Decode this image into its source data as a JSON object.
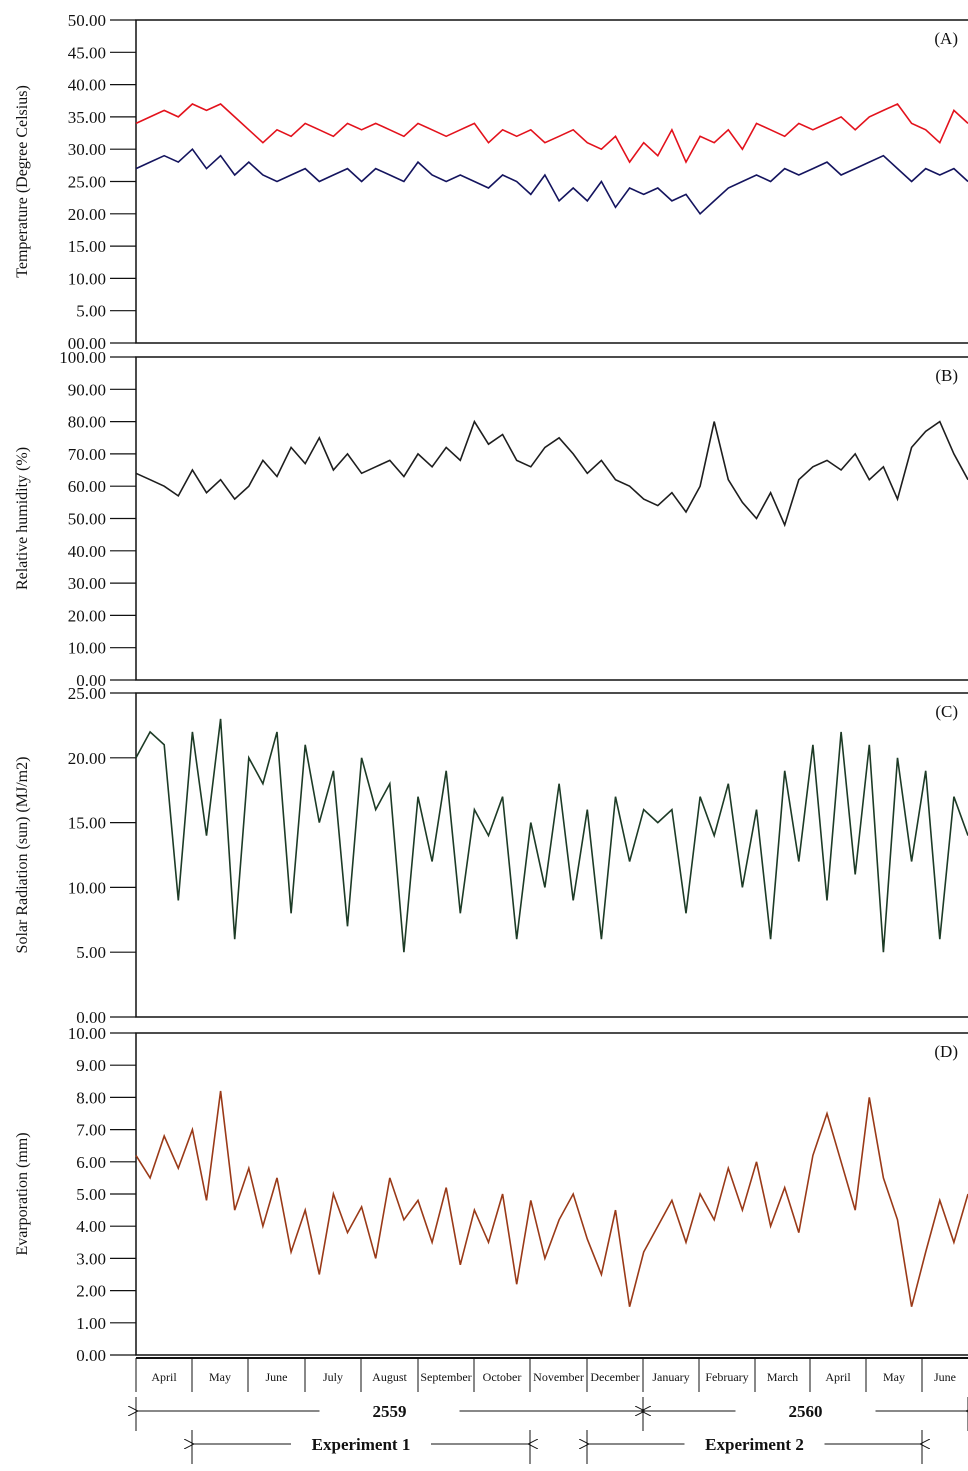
{
  "chart_data": [
    {
      "type": "line",
      "panel_label": "(A)",
      "y_label": "Temperature (Degree Celsius)",
      "ylim": [
        0,
        50
      ],
      "yticks": [
        {
          "value": 0,
          "label": "00.00"
        },
        {
          "value": 5,
          "label": "5.00"
        },
        {
          "value": 10,
          "label": "10.00"
        },
        {
          "value": 15,
          "label": "15.00"
        },
        {
          "value": 20,
          "label": "20.00"
        },
        {
          "value": 25,
          "label": "25.00"
        },
        {
          "value": 30,
          "label": "30.00"
        },
        {
          "value": 35,
          "label": "35.00"
        },
        {
          "value": 40,
          "label": "40.00"
        },
        {
          "value": 45,
          "label": "45.00"
        },
        {
          "value": 50,
          "label": "50.00"
        }
      ],
      "series": [
        {
          "color": "#e3121c",
          "values": [
            34,
            35,
            36,
            35,
            37,
            36,
            37,
            35,
            33,
            31,
            33,
            32,
            34,
            33,
            32,
            34,
            33,
            34,
            33,
            32,
            34,
            33,
            32,
            33,
            34,
            31,
            33,
            32,
            33,
            31,
            32,
            33,
            31,
            30,
            32,
            28,
            31,
            29,
            33,
            28,
            32,
            31,
            33,
            30,
            34,
            33,
            32,
            34,
            33,
            34,
            35,
            33,
            35,
            36,
            37,
            34,
            33,
            31,
            36,
            34
          ]
        },
        {
          "color": "#14145e",
          "values": [
            27,
            28,
            29,
            28,
            30,
            27,
            29,
            26,
            28,
            26,
            25,
            26,
            27,
            25,
            26,
            27,
            25,
            27,
            26,
            25,
            28,
            26,
            25,
            26,
            25,
            24,
            26,
            25,
            23,
            26,
            22,
            24,
            22,
            25,
            21,
            24,
            23,
            24,
            22,
            23,
            20,
            22,
            24,
            25,
            26,
            25,
            27,
            26,
            27,
            28,
            26,
            27,
            28,
            29,
            27,
            25,
            27,
            26,
            27,
            25
          ]
        }
      ]
    },
    {
      "type": "line",
      "panel_label": "(B)",
      "y_label": "Relative humidity (%)",
      "ylim": [
        0,
        100
      ],
      "yticks": [
        {
          "value": 0,
          "label": "0.00"
        },
        {
          "value": 10,
          "label": "10.00"
        },
        {
          "value": 20,
          "label": "20.00"
        },
        {
          "value": 30,
          "label": "30.00"
        },
        {
          "value": 40,
          "label": "40.00"
        },
        {
          "value": 50,
          "label": "50.00"
        },
        {
          "value": 60,
          "label": "60.00"
        },
        {
          "value": 70,
          "label": "70.00"
        },
        {
          "value": 80,
          "label": "80.00"
        },
        {
          "value": 90,
          "label": "90.00"
        },
        {
          "value": 100,
          "label": "100.00"
        }
      ],
      "series": [
        {
          "color": "#1e1e1e",
          "values": [
            64,
            62,
            60,
            57,
            65,
            58,
            62,
            56,
            60,
            68,
            63,
            72,
            67,
            75,
            65,
            70,
            64,
            66,
            68,
            63,
            70,
            66,
            72,
            68,
            80,
            73,
            76,
            68,
            66,
            72,
            75,
            70,
            64,
            68,
            62,
            60,
            56,
            54,
            58,
            52,
            60,
            80,
            62,
            55,
            50,
            58,
            48,
            62,
            66,
            68,
            65,
            70,
            62,
            66,
            56,
            72,
            77,
            80,
            70,
            62
          ]
        }
      ]
    },
    {
      "type": "line",
      "panel_label": "(C)",
      "y_label": "Solar Radiation (sun) (MJ/m2)",
      "ylim": [
        0,
        25
      ],
      "yticks": [
        {
          "value": 0,
          "label": "0.00"
        },
        {
          "value": 5,
          "label": "5.00"
        },
        {
          "value": 10,
          "label": "10.00"
        },
        {
          "value": 15,
          "label": "15.00"
        },
        {
          "value": 20,
          "label": "20.00"
        },
        {
          "value": 25,
          "label": "25.00"
        }
      ],
      "series": [
        {
          "color": "#1d3b26",
          "values": [
            20,
            22,
            21,
            9,
            22,
            14,
            23,
            6,
            20,
            18,
            22,
            8,
            21,
            15,
            19,
            7,
            20,
            16,
            18,
            5,
            17,
            12,
            19,
            8,
            16,
            14,
            17,
            6,
            15,
            10,
            18,
            9,
            16,
            6,
            17,
            12,
            16,
            15,
            16,
            8,
            17,
            14,
            18,
            10,
            16,
            6,
            19,
            12,
            21,
            9,
            22,
            11,
            21,
            5,
            20,
            12,
            19,
            6,
            17,
            14
          ]
        }
      ]
    },
    {
      "type": "line",
      "panel_label": "(D)",
      "y_label": "Evarporation (mm)",
      "ylim": [
        0,
        10
      ],
      "yticks": [
        {
          "value": 0,
          "label": "0.00"
        },
        {
          "value": 1,
          "label": "1.00"
        },
        {
          "value": 2,
          "label": "2.00"
        },
        {
          "value": 3,
          "label": "3.00"
        },
        {
          "value": 4,
          "label": "4.00"
        },
        {
          "value": 5,
          "label": "5.00"
        },
        {
          "value": 6,
          "label": "6.00"
        },
        {
          "value": 7,
          "label": "7.00"
        },
        {
          "value": 8,
          "label": "8.00"
        },
        {
          "value": 9,
          "label": "9.00"
        },
        {
          "value": 10,
          "label": "10.00"
        }
      ],
      "series": [
        {
          "color": "#9a3a18",
          "values": [
            6.2,
            5.5,
            6.8,
            5.8,
            7.0,
            4.8,
            8.2,
            4.5,
            5.8,
            4.0,
            5.5,
            3.2,
            4.5,
            2.5,
            5.0,
            3.8,
            4.6,
            3.0,
            5.5,
            4.2,
            4.8,
            3.5,
            5.2,
            2.8,
            4.5,
            3.5,
            5.0,
            2.2,
            4.8,
            3.0,
            4.2,
            5.0,
            3.6,
            2.5,
            4.5,
            1.5,
            3.2,
            4.0,
            4.8,
            3.5,
            5.0,
            4.2,
            5.8,
            4.5,
            6.0,
            4.0,
            5.2,
            3.8,
            6.2,
            7.5,
            6.0,
            4.5,
            8.0,
            5.5,
            4.2,
            1.5,
            3.2,
            4.8,
            3.5,
            5.0
          ]
        }
      ]
    }
  ],
  "x_axis": {
    "categories": [
      "April",
      "May",
      "June",
      "July",
      "August",
      "September",
      "October",
      "November",
      "December",
      "January",
      "February",
      "March",
      "April",
      "May",
      "June"
    ],
    "years": [
      "2559",
      "2560"
    ],
    "experiments": [
      "Experiment 1",
      "Experiment 2"
    ]
  }
}
